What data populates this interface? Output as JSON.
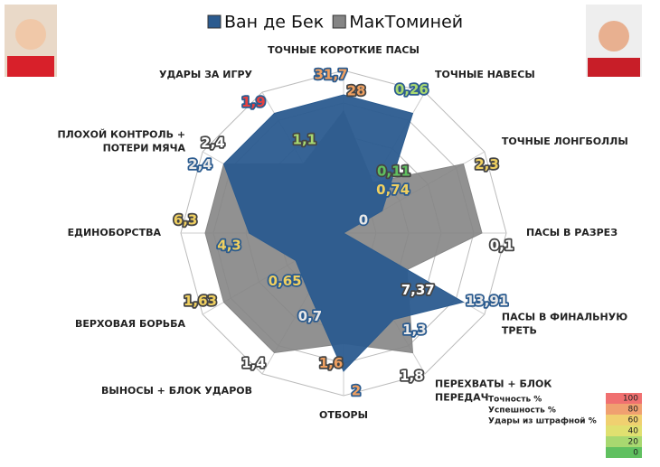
{
  "chart_data": {
    "type": "radar",
    "axes": [
      [
        "ТОЧНЫЕ КОРОТКИЕ ПАСЫ"
      ],
      [
        "ТОЧНЫЕ НАВЕСЫ"
      ],
      [
        "ТОЧНЫЕ ЛОНГБОЛЛЫ"
      ],
      [
        "ПАСЫ В РАЗРЕЗ"
      ],
      [
        "ПАСЫ В ФИНАЛЬНУЮ",
        "ТРЕТЬ"
      ],
      [
        "ПЕРЕХВАТЫ + БЛОК",
        "ПЕРЕДАЧ"
      ],
      [
        "ОТБОРЫ"
      ],
      [
        "ВЫНОСЫ + БЛОК УДАРОВ"
      ],
      [
        "ВЕРХОВАЯ БОРЬБА"
      ],
      [
        "ЕДИНОБОРСТВА"
      ],
      [
        "ПЛОХОЙ КОНТРОЛЬ +",
        "ПОТЕРИ МЯЧА"
      ],
      [
        "УДАРЫ ЗА ИГРУ"
      ]
    ],
    "series": [
      {
        "name": "Ван де Бек",
        "color": "#2b5b8f",
        "values": [
          31.7,
          0.26,
          0.74,
          0,
          13.91,
          1.3,
          2,
          0.7,
          0.65,
          4.3,
          2.4,
          1.9
        ],
        "value_labels": [
          "31,7",
          "0,26",
          "0,74",
          "0",
          "13,91",
          "1,3",
          "2",
          "0,7",
          "0,65",
          "4,3",
          "2,4",
          "1,9"
        ],
        "label_colors": [
          "#f0a060",
          "#a8d870",
          "#f0d060",
          "#e8e8e8",
          "#e8e8e8",
          "#e8e8e8",
          "#f0a060",
          "#e8e8e8",
          "#f0d060",
          "#f0d060",
          "#e8e8e8",
          "#e84040"
        ]
      },
      {
        "name": "МакТоминей",
        "color": "#858585",
        "values": [
          28,
          0.11,
          2.3,
          0.1,
          7.37,
          1.8,
          1.6,
          1.4,
          1.63,
          6.3,
          2.4,
          1.1
        ],
        "value_labels": [
          "28",
          "0,11",
          "2,3",
          "0,1",
          "7,37",
          "1,8",
          "1,6",
          "1,4",
          "1,63",
          "6,3",
          "2,4",
          "1,1"
        ],
        "label_colors": [
          "#f0a060",
          "#60c060",
          "#f0d060",
          "#ffffff",
          "#ffffff",
          "#ffffff",
          "#f0a060",
          "#ffffff",
          "#f0d060",
          "#f0d060",
          "#ffffff",
          "#a8d870"
        ]
      }
    ],
    "color_scale": {
      "labels": [
        "Точность %",
        "Успешность %",
        "Удары из штрафной %"
      ],
      "ticks": [
        100,
        80,
        60,
        40,
        20,
        0
      ],
      "colors": [
        "#f07070",
        "#f0a070",
        "#f0d070",
        "#e0e070",
        "#a8d870",
        "#60c060"
      ]
    }
  }
}
